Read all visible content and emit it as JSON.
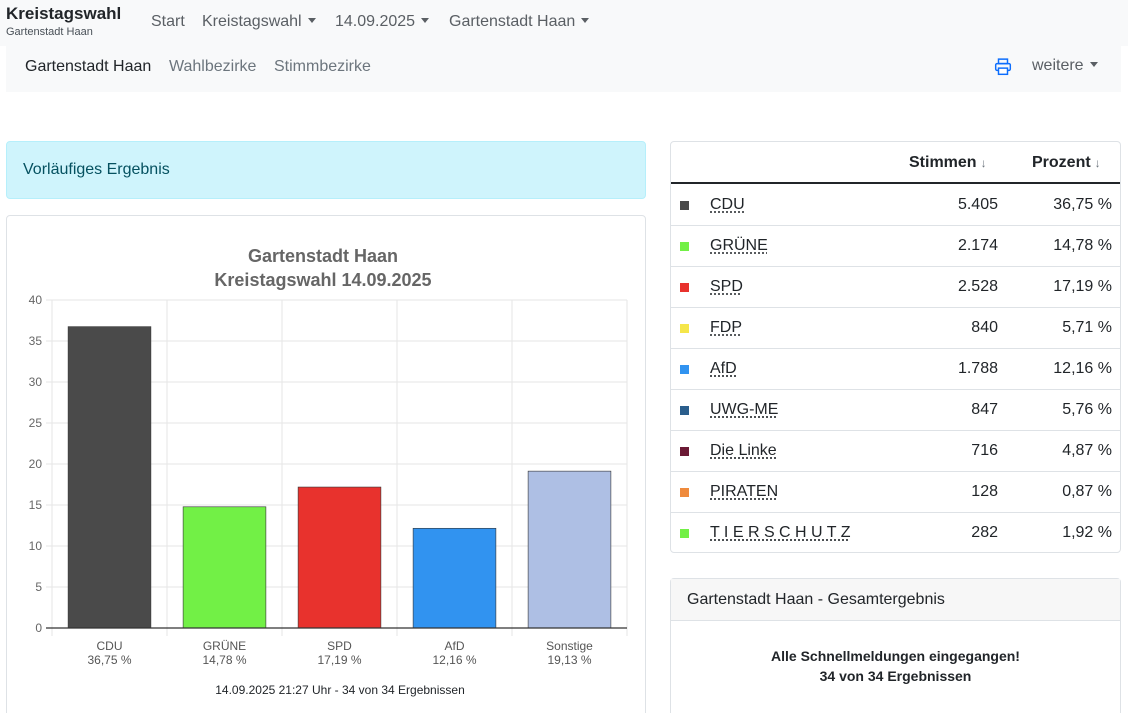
{
  "brand": {
    "title": "Kreistagswahl",
    "subtitle": "Gartenstadt Haan"
  },
  "nav": {
    "start": "Start",
    "election": "Kreistagswahl",
    "date": "14.09.2025",
    "area": "Gartenstadt Haan"
  },
  "subnav": {
    "active": "Gartenstadt Haan",
    "wahlbezirke": "Wahlbezirke",
    "stimmbezirke": "Stimmbezirke",
    "more": "weitere"
  },
  "alert": "Vorläufiges Ergebnis",
  "chart_data": {
    "type": "bar",
    "title": [
      "Gartenstadt Haan",
      "Kreistagswahl 14.09.2025"
    ],
    "categories": [
      "CDU",
      "GRÜNE",
      "SPD",
      "AfD",
      "Sonstige"
    ],
    "category_sublabels": [
      "36,75 %",
      "14,78 %",
      "17,19 %",
      "12,16 %",
      "19,13 %"
    ],
    "values": [
      36.75,
      14.78,
      17.19,
      12.16,
      19.13
    ],
    "colors": [
      "#4a4a4a",
      "#72f046",
      "#e8322d",
      "#3193f0",
      "#aebfe4"
    ],
    "ylim": [
      0,
      40
    ],
    "yticks": [
      "0",
      "5",
      "10",
      "15",
      "20",
      "25",
      "30",
      "35",
      "40"
    ],
    "grid": true,
    "footer": "14.09.2025 21:27 Uhr - 34 von 34 Ergebnissen"
  },
  "table": {
    "headers": {
      "votes": "Stimmen",
      "percent": "Prozent"
    },
    "sort_arrow": "↓",
    "rows": [
      {
        "party": "CDU",
        "votes": "5.405",
        "percent": "36,75 %",
        "color": "#4a4a4a"
      },
      {
        "party": "GRÜNE",
        "votes": "2.174",
        "percent": "14,78 %",
        "color": "#72f046"
      },
      {
        "party": "SPD",
        "votes": "2.528",
        "percent": "17,19 %",
        "color": "#e8322d"
      },
      {
        "party": "FDP",
        "votes": "840",
        "percent": "5,71 %",
        "color": "#f5e64a"
      },
      {
        "party": "AfD",
        "votes": "1.788",
        "percent": "12,16 %",
        "color": "#3193f0"
      },
      {
        "party": "UWG-ME",
        "votes": "847",
        "percent": "5,76 %",
        "color": "#2b5e8c"
      },
      {
        "party": "Die Linke",
        "votes": "716",
        "percent": "4,87 %",
        "color": "#6b1a35"
      },
      {
        "party": "PIRATEN",
        "votes": "128",
        "percent": "0,87 %",
        "color": "#ef8a3c"
      },
      {
        "party": "T I E R S C H U T Z",
        "votes": "282",
        "percent": "1,92 %",
        "color": "#72f046"
      }
    ]
  },
  "summary": {
    "title": "Gartenstadt Haan - Gesamtergebnis",
    "line1": "Alle Schnellmeldungen eingegangen!",
    "line2": "34 von 34 Ergebnissen"
  },
  "icons": {
    "print": "printer-icon",
    "dropdown": "chevron-down-icon"
  }
}
